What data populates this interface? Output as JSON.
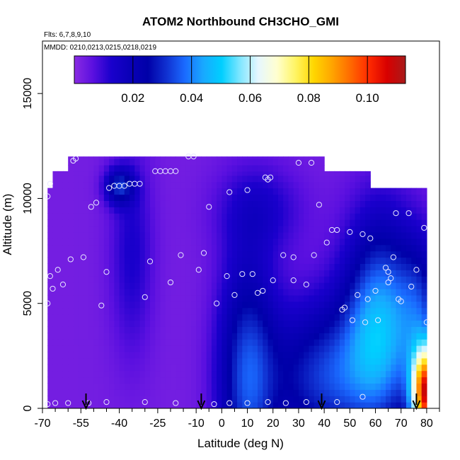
{
  "chart_data": {
    "type": "heatmap",
    "title": "ATOM2 Northbound CH3CHO_GMI",
    "subtitle_flights": "Flts: 6,7,8,9,10",
    "subtitle_dates": "MMDD: 0210,0213,0215,0218,0219",
    "xlabel": "Latitude (deg N)",
    "ylabel": "Altitude (m)",
    "xlim": [
      -70,
      85
    ],
    "ylim": [
      0,
      17500
    ],
    "x_ticks": [
      -70,
      -55,
      -40,
      -25,
      -10,
      0,
      10,
      20,
      30,
      40,
      50,
      60,
      70,
      80
    ],
    "x_tick_labels": [
      "-70",
      "-55",
      "-40",
      "-25",
      "-10",
      "0",
      "10",
      "20",
      "30",
      "40",
      "50",
      "60",
      "70",
      "80"
    ],
    "x_minor_ticks": [
      -65,
      -60,
      -50,
      -45,
      -35,
      -30,
      -20,
      -15,
      -5,
      5,
      15,
      25,
      35,
      45,
      55,
      65,
      75,
      85
    ],
    "y_ticks": [
      0,
      5000,
      10000,
      15000
    ],
    "y_tick_labels": [
      "0",
      "5000",
      "10000",
      "15000"
    ],
    "colorbar": {
      "range": [
        0,
        0.113
      ],
      "ticks": [
        0.02,
        0.04,
        0.06,
        0.08,
        0.1
      ],
      "tick_labels": [
        "0.02",
        "0.04",
        "0.06",
        "0.08",
        "0.10"
      ],
      "colors": [
        "#8a2be2",
        "#5b10e0",
        "#1a00cc",
        "#0a00b8",
        "#0000a8",
        "#1030d0",
        "#1a6aff",
        "#19a8ff",
        "#00cfff",
        "#7fe6ff",
        "#e6f7ff",
        "#ffffd0",
        "#fff566",
        "#ffd700",
        "#ffa500",
        "#ff6a00",
        "#ff2a00",
        "#d80000",
        "#a81a1a"
      ]
    },
    "grid_lon": [
      -69,
      -67,
      -65,
      -63,
      -61,
      -59,
      -57,
      -55,
      -53,
      -51,
      -49,
      -47,
      -45,
      -43,
      -41,
      -39,
      -37,
      -35,
      -33,
      -31,
      -29,
      -27,
      -25,
      -23,
      -21,
      -19,
      -17,
      -15,
      -13,
      -11,
      -9,
      -7,
      -5,
      -3,
      -1,
      1,
      3,
      5,
      7,
      9,
      11,
      13,
      15,
      17,
      19,
      21,
      23,
      25,
      27,
      29,
      31,
      33,
      35,
      37,
      39,
      41,
      43,
      45,
      47,
      49,
      51,
      53,
      55,
      57,
      59,
      61,
      63,
      65,
      67,
      69,
      71,
      73,
      75,
      77,
      79
    ],
    "alt_bands": [
      {
        "lat_min": -68,
        "lat_max": 81,
        "alt_min": 0,
        "alt_max": 6000
      },
      {
        "lat_min": -68,
        "lat_max": 81,
        "alt_min": 6000,
        "alt_max": 10500
      },
      {
        "lat_min": -66,
        "lat_max": 58,
        "alt_min": 10500,
        "alt_max": 11300
      },
      {
        "lat_min": -60,
        "lat_max": 40,
        "alt_min": 11300,
        "alt_max": 12000
      }
    ],
    "features": [
      {
        "name": "background_low",
        "value": 0.003
      },
      {
        "name": "blue_plume_column_-35",
        "lat": -35,
        "alt": 7500,
        "value": 0.012
      },
      {
        "name": "tropical_column_+8",
        "lat": 8,
        "alt": 3000,
        "value": 0.025
      },
      {
        "name": "arctic_surface_high",
        "lat": 78,
        "alt": 800,
        "value": 0.1
      },
      {
        "name": "high_lat_mid",
        "lat": 70,
        "alt": 4000,
        "value": 0.055
      }
    ],
    "sample_points": [
      {
        "lat": -68,
        "alt": 200
      },
      {
        "lat": -65,
        "alt": 250
      },
      {
        "lat": -60,
        "alt": 250
      },
      {
        "lat": -52,
        "alt": 250
      },
      {
        "lat": -45,
        "alt": 300
      },
      {
        "lat": -30,
        "alt": 300
      },
      {
        "lat": -18,
        "alt": 250
      },
      {
        "lat": -3,
        "alt": 200
      },
      {
        "lat": 3,
        "alt": 250
      },
      {
        "lat": 10,
        "alt": 250
      },
      {
        "lat": 18,
        "alt": 300
      },
      {
        "lat": 25,
        "alt": 250
      },
      {
        "lat": 33,
        "alt": 300
      },
      {
        "lat": 45,
        "alt": 300
      },
      {
        "lat": 55,
        "alt": 550
      },
      {
        "lat": -68,
        "alt": 10100
      },
      {
        "lat": -67,
        "alt": 10700
      },
      {
        "lat": -68,
        "alt": 5000
      },
      {
        "lat": -67,
        "alt": 6300
      },
      {
        "lat": -66,
        "alt": 5700
      },
      {
        "lat": -64,
        "alt": 6600
      },
      {
        "lat": -62,
        "alt": 5900
      },
      {
        "lat": -59,
        "alt": 7100
      },
      {
        "lat": -54,
        "alt": 7200
      },
      {
        "lat": -51,
        "alt": 9600
      },
      {
        "lat": -49,
        "alt": 9800
      },
      {
        "lat": -45,
        "alt": 6500
      },
      {
        "lat": -47,
        "alt": 4900
      },
      {
        "lat": -44,
        "alt": 10500
      },
      {
        "lat": -42,
        "alt": 10600
      },
      {
        "lat": -40,
        "alt": 10600
      },
      {
        "lat": -38,
        "alt": 10600
      },
      {
        "lat": -36,
        "alt": 10700
      },
      {
        "lat": -34,
        "alt": 10700
      },
      {
        "lat": -32,
        "alt": 10700
      },
      {
        "lat": -28,
        "alt": 7000
      },
      {
        "lat": -26,
        "alt": 11300
      },
      {
        "lat": -24,
        "alt": 11300
      },
      {
        "lat": -22,
        "alt": 11300
      },
      {
        "lat": -20,
        "alt": 11300
      },
      {
        "lat": -18,
        "alt": 11300
      },
      {
        "lat": -20,
        "alt": 6000
      },
      {
        "lat": -30,
        "alt": 5300
      },
      {
        "lat": -16,
        "alt": 7300
      },
      {
        "lat": -13,
        "alt": 12000
      },
      {
        "lat": -11,
        "alt": 12000
      },
      {
        "lat": -57,
        "alt": 11900
      },
      {
        "lat": -58,
        "alt": 11800
      },
      {
        "lat": -9,
        "alt": 6600
      },
      {
        "lat": -7,
        "alt": 7400
      },
      {
        "lat": -5,
        "alt": 9600
      },
      {
        "lat": -2,
        "alt": 5000
      },
      {
        "lat": 2,
        "alt": 6300
      },
      {
        "lat": 3,
        "alt": 10300
      },
      {
        "lat": 5,
        "alt": 5400
      },
      {
        "lat": 8,
        "alt": 6400
      },
      {
        "lat": 10,
        "alt": 10400
      },
      {
        "lat": 12,
        "alt": 6400
      },
      {
        "lat": 14,
        "alt": 5500
      },
      {
        "lat": 16,
        "alt": 5600
      },
      {
        "lat": 17,
        "alt": 11000
      },
      {
        "lat": 18,
        "alt": 10900
      },
      {
        "lat": 19,
        "alt": 11000
      },
      {
        "lat": 20,
        "alt": 6100
      },
      {
        "lat": 24,
        "alt": 7300
      },
      {
        "lat": 28,
        "alt": 7200
      },
      {
        "lat": 28,
        "alt": 6100
      },
      {
        "lat": 33,
        "alt": 5900
      },
      {
        "lat": 36,
        "alt": 7300
      },
      {
        "lat": 30,
        "alt": 11700
      },
      {
        "lat": 35,
        "alt": 11700
      },
      {
        "lat": 38,
        "alt": 9700
      },
      {
        "lat": 41,
        "alt": 7900
      },
      {
        "lat": 43,
        "alt": 8500
      },
      {
        "lat": 45,
        "alt": 8500
      },
      {
        "lat": 47,
        "alt": 4700
      },
      {
        "lat": 48,
        "alt": 4800
      },
      {
        "lat": 50,
        "alt": 8400
      },
      {
        "lat": 51,
        "alt": 4200
      },
      {
        "lat": 53,
        "alt": 5400
      },
      {
        "lat": 55,
        "alt": 8300
      },
      {
        "lat": 56,
        "alt": 4100
      },
      {
        "lat": 57,
        "alt": 5200
      },
      {
        "lat": 58,
        "alt": 8100
      },
      {
        "lat": 60,
        "alt": 5600
      },
      {
        "lat": 61,
        "alt": 4200
      },
      {
        "lat": 64,
        "alt": 6700
      },
      {
        "lat": 65,
        "alt": 6500
      },
      {
        "lat": 65,
        "alt": 6000
      },
      {
        "lat": 66,
        "alt": 6200
      },
      {
        "lat": 68,
        "alt": 9300
      },
      {
        "lat": 69,
        "alt": 5200
      },
      {
        "lat": 70,
        "alt": 5100
      },
      {
        "lat": 73,
        "alt": 9300
      },
      {
        "lat": 74,
        "alt": 5800
      },
      {
        "lat": 76,
        "alt": 6600
      },
      {
        "lat": 79,
        "alt": 8600
      },
      {
        "lat": 80,
        "alt": 4100
      },
      {
        "lat": 67,
        "alt": 7200
      }
    ],
    "flight_marker_lats": [
      -53,
      -8,
      39,
      76
    ]
  }
}
